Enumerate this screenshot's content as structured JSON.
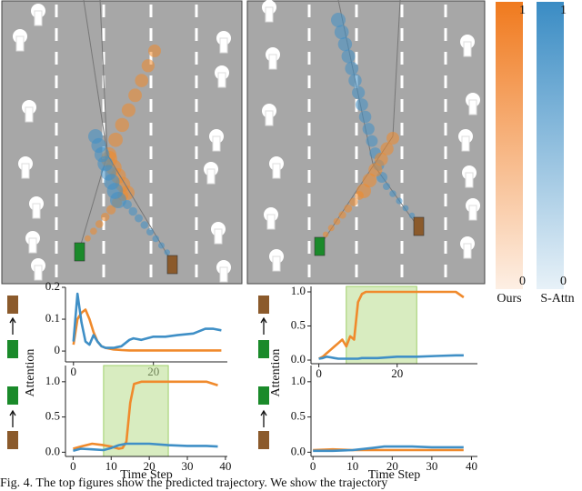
{
  "chart_data": [
    {
      "type": "line",
      "y_label": "Attention",
      "xlim": [
        -2,
        38.5
      ],
      "ylim": [
        -0.034,
        0.2
      ],
      "xticks": [
        0,
        20
      ],
      "yticks": [
        0,
        0.1,
        0.2
      ],
      "x": [
        0,
        1,
        2,
        3,
        4,
        5,
        6,
        7,
        8,
        10,
        12,
        14,
        15,
        17,
        20,
        23,
        26,
        30,
        33,
        35,
        37
      ],
      "series": [
        {
          "color": "#f08a2c",
          "values": [
            0.02,
            0.1,
            0.12,
            0.13,
            0.1,
            0.06,
            0.03,
            0.015,
            0.01,
            0.005,
            0.003,
            0.002,
            0.002,
            0.002,
            0.002,
            0.002,
            0.002,
            0.002,
            0.002,
            0.002,
            0.002
          ]
        },
        {
          "color": "#3f8fc6",
          "values": [
            0.03,
            0.18,
            0.09,
            0.03,
            0.02,
            0.05,
            0.03,
            0.015,
            0.01,
            0.01,
            0.015,
            0.035,
            0.04,
            0.035,
            0.045,
            0.045,
            0.05,
            0.055,
            0.07,
            0.07,
            0.065
          ]
        }
      ]
    },
    {
      "type": "line",
      "y_label": "Attention",
      "xlim": [
        -2,
        40.5
      ],
      "ylim": [
        -0.053,
        1.08
      ],
      "xticks": [
        0,
        20
      ],
      "yticks": [
        {
          "value": 0,
          "label": "0.0"
        },
        0.5,
        {
          "value": 1,
          "label": "1.0"
        }
      ],
      "highlight": [
        7,
        25
      ],
      "x": [
        0,
        1,
        2,
        3,
        4,
        5,
        6,
        7,
        8,
        9,
        10,
        11,
        12,
        15,
        20,
        25,
        30,
        35,
        37
      ],
      "series": [
        {
          "color": "#f08a2c",
          "values": [
            0.02,
            0.05,
            0.1,
            0.15,
            0.2,
            0.25,
            0.3,
            0.2,
            0.35,
            0.3,
            0.85,
            0.97,
            1.0,
            1.0,
            1.0,
            1.0,
            1.0,
            1.0,
            0.92
          ]
        },
        {
          "color": "#3f8fc6",
          "values": [
            0.02,
            0.03,
            0.05,
            0.04,
            0.03,
            0.02,
            0.02,
            0.02,
            0.02,
            0.02,
            0.02,
            0.03,
            0.03,
            0.03,
            0.05,
            0.05,
            0.06,
            0.07,
            0.07
          ]
        }
      ]
    },
    {
      "type": "line",
      "x_label": "Time Step",
      "xlim": [
        -2,
        40.5
      ],
      "ylim": [
        -0.06,
        1.23
      ],
      "xticks": [
        0,
        10,
        20,
        30,
        40
      ],
      "yticks": [
        {
          "value": 0,
          "label": "0.0"
        },
        0.5,
        {
          "value": 1,
          "label": "1.0"
        }
      ],
      "highlight": [
        8,
        25
      ],
      "x": [
        0,
        2,
        5,
        8,
        10,
        12,
        13,
        14,
        15,
        16,
        18,
        20,
        25,
        30,
        35,
        38
      ],
      "series": [
        {
          "color": "#f08a2c",
          "values": [
            0.05,
            0.08,
            0.12,
            0.1,
            0.08,
            0.05,
            0.06,
            0.15,
            0.7,
            0.97,
            1.0,
            1.0,
            1.0,
            1.0,
            1.0,
            0.95
          ]
        },
        {
          "color": "#3f8fc6",
          "values": [
            0.02,
            0.05,
            0.04,
            0.03,
            0.06,
            0.1,
            0.11,
            0.12,
            0.12,
            0.12,
            0.12,
            0.12,
            0.1,
            0.09,
            0.09,
            0.08
          ]
        }
      ]
    },
    {
      "type": "line",
      "x_label": "Time Step",
      "xlim": [
        -0.5,
        41.5
      ],
      "ylim": [
        -0.06,
        1.23
      ],
      "xticks": [
        0,
        10,
        20,
        30,
        40
      ],
      "yticks": [
        {
          "value": 0,
          "label": "0.0"
        },
        0.5,
        {
          "value": 1,
          "label": "1.0"
        }
      ],
      "x": [
        0,
        5,
        10,
        15,
        18,
        20,
        25,
        30,
        35,
        38
      ],
      "series": [
        {
          "color": "#f08a2c",
          "values": [
            0.03,
            0.04,
            0.03,
            0.03,
            0.03,
            0.03,
            0.03,
            0.03,
            0.03,
            0.03
          ]
        },
        {
          "color": "#3f8fc6",
          "values": [
            0.02,
            0.02,
            0.03,
            0.06,
            0.08,
            0.08,
            0.08,
            0.07,
            0.07,
            0.07
          ]
        }
      ]
    }
  ],
  "colorbars": [
    {
      "label": "Ours",
      "color": "#f07a1e",
      "range": [
        0,
        1
      ]
    },
    {
      "label": "S-Attn",
      "color": "#3a8cc4",
      "range": [
        0,
        1
      ]
    }
  ],
  "caption": "Fig. 4.   The top figures show the predicted trajectory. We show the trajectory"
}
